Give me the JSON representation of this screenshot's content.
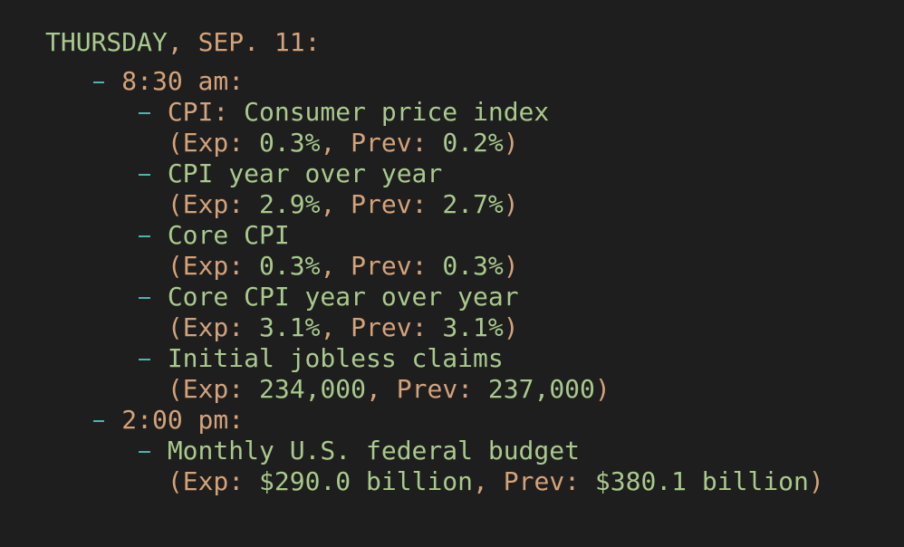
{
  "header": {
    "day": "THURSDAY",
    "date": ", SEP. 11:"
  },
  "sessions": [
    {
      "time": "8:30 am:",
      "items": [
        {
          "key": "CPI:",
          "name": " Consumer price index",
          "exp_label": "(Exp: ",
          "exp": "0.3%",
          "prev_label": ", Prev: ",
          "prev": "0.2%",
          "close": ")"
        },
        {
          "name": "CPI year over year",
          "exp_label": "(Exp: ",
          "exp": "2.9%",
          "prev_label": ", Prev: ",
          "prev": "2.7%",
          "close": ")"
        },
        {
          "name": "Core CPI",
          "exp_label": "(Exp: ",
          "exp": "0.3%",
          "prev_label": ", Prev: ",
          "prev": "0.3%",
          "close": ")"
        },
        {
          "name": "Core CPI year over year",
          "exp_label": "(Exp: ",
          "exp": "3.1%",
          "prev_label": ", Prev: ",
          "prev": "3.1%",
          "close": ")"
        },
        {
          "name": "Initial jobless claims",
          "exp_label": "(Exp: ",
          "exp": "234,000",
          "prev_label": ", Prev: ",
          "prev": "237,000",
          "close": ")"
        }
      ]
    },
    {
      "time": "2:00 pm:",
      "items": [
        {
          "name": "Monthly U.S. federal budget",
          "exp_label": "(Exp: ",
          "exp": "$290.0 billion",
          "prev_label": ", Prev: ",
          "prev": "$380.1 billion",
          "close": ")"
        }
      ]
    }
  ]
}
